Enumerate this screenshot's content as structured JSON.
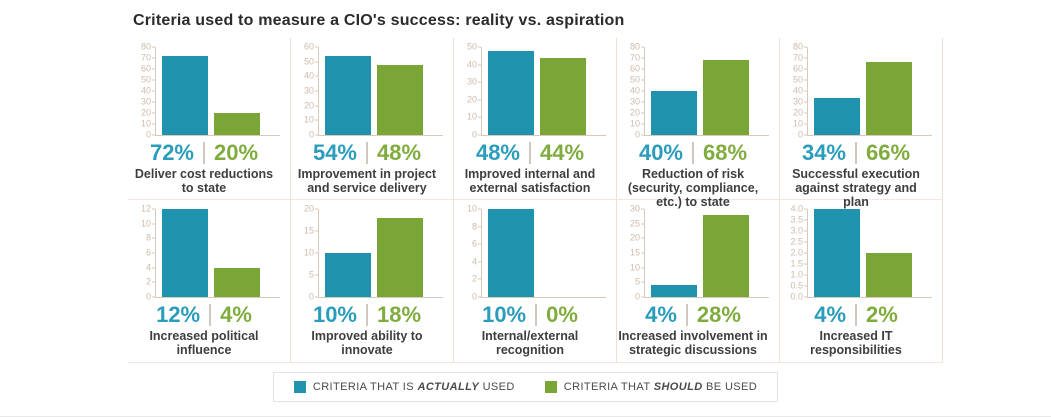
{
  "title": "Criteria used to measure a CIO's success: reality vs. aspiration",
  "colors": {
    "actual_bar": "#1F93AE",
    "should_bar": "#7AA638",
    "actual_text": "#2A9CBC",
    "should_text": "#7FAC3C",
    "axis": "#D9C9B8",
    "tick_text": "#CDBBA9"
  },
  "legend": {
    "items": [
      {
        "name": "actual",
        "color": "#1F93AE",
        "prefix": "CRITERIA THAT IS ",
        "emphasis": "ACTUALLY",
        "suffix": " USED"
      },
      {
        "name": "should",
        "color": "#7AA638",
        "prefix": "CRITERIA THAT ",
        "emphasis": "SHOULD",
        "suffix": " BE USED"
      }
    ]
  },
  "chart_data": {
    "type": "bar",
    "title": "Criteria used to measure a CIO's success: reality vs. aspiration",
    "series_names": [
      "Criteria that is actually used",
      "Criteria that should be used"
    ],
    "legend_position": "bottom",
    "grid": false,
    "panels": [
      {
        "caption": "Deliver cost reductions to state",
        "actual": 72,
        "should": 20,
        "actual_label": "72%",
        "should_label": "20%",
        "ymax": 80,
        "ystep": 10,
        "decimals": 0
      },
      {
        "caption": "Improvement in project and service delivery",
        "actual": 54,
        "should": 48,
        "actual_label": "54%",
        "should_label": "48%",
        "ymax": 60,
        "ystep": 10,
        "decimals": 0
      },
      {
        "caption": "Improved internal and external satisfaction",
        "actual": 48,
        "should": 44,
        "actual_label": "48%",
        "should_label": "44%",
        "ymax": 50,
        "ystep": 10,
        "decimals": 0
      },
      {
        "caption": "Reduction of risk (security, compliance, etc.) to state",
        "actual": 40,
        "should": 68,
        "actual_label": "40%",
        "should_label": "68%",
        "ymax": 80,
        "ystep": 10,
        "decimals": 0
      },
      {
        "caption": "Successful execution against strategy and plan",
        "actual": 34,
        "should": 66,
        "actual_label": "34%",
        "should_label": "66%",
        "ymax": 80,
        "ystep": 10,
        "decimals": 0
      },
      {
        "caption": "Increased political influence",
        "actual": 12,
        "should": 4,
        "actual_label": "12%",
        "should_label": "4%",
        "ymax": 12,
        "ystep": 2,
        "decimals": 0
      },
      {
        "caption": "Improved ability to innovate",
        "actual": 10,
        "should": 18,
        "actual_label": "10%",
        "should_label": "18%",
        "ymax": 20,
        "ystep": 5,
        "decimals": 0
      },
      {
        "caption": "Internal/external recognition",
        "actual": 10,
        "should": 0,
        "actual_label": "10%",
        "should_label": "0%",
        "ymax": 10,
        "ystep": 2,
        "decimals": 0
      },
      {
        "caption": "Increased involvement in strategic discussions",
        "actual": 4,
        "should": 28,
        "actual_label": "4%",
        "should_label": "28%",
        "ymax": 30,
        "ystep": 5,
        "decimals": 0
      },
      {
        "caption": "Increased IT responsibilities",
        "actual": 4,
        "should": 2,
        "actual_label": "4%",
        "should_label": "2%",
        "ymax": 4,
        "ystep": 0.5,
        "decimals": 1
      }
    ]
  }
}
